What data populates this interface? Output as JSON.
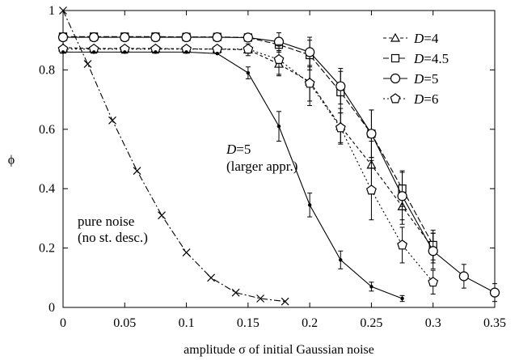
{
  "chart_data": {
    "type": "scatter",
    "xlabel": "amplitude σ of initial Gaussian noise",
    "ylabel": "ϕ",
    "xlim": [
      0,
      0.35
    ],
    "ylim": [
      0,
      1
    ],
    "xticks": [
      0,
      0.05,
      0.1,
      0.15,
      0.2,
      0.25,
      0.3,
      0.35
    ],
    "yticks": [
      0,
      0.2,
      0.4,
      0.6,
      0.8,
      1
    ],
    "xtick_labels": [
      "0",
      "0.05",
      "0.1",
      "0.15",
      "0.2",
      "0.25",
      "0.3",
      "0.35"
    ],
    "ytick_labels": [
      "0",
      "0.2",
      "0.4",
      "0.6",
      "0.8",
      "1"
    ],
    "legend_position": "top-right",
    "series": [
      {
        "name": "D=4",
        "legend_prefix": "D",
        "legend_suffix": "=4",
        "marker": "triangle",
        "dash": "4,3",
        "in_legend": true,
        "x": [
          0,
          0.025,
          0.05,
          0.075,
          0.1,
          0.125,
          0.15,
          0.175,
          0.2,
          0.225,
          0.25,
          0.275,
          0.3
        ],
        "y": [
          0.875,
          0.872,
          0.872,
          0.872,
          0.871,
          0.87,
          0.868,
          0.82,
          0.76,
          0.61,
          0.48,
          0.34,
          0.2
        ],
        "err": [
          0,
          0,
          0,
          0,
          0,
          0,
          0.02,
          0.04,
          0.08,
          0.06,
          0.08,
          0.06,
          0.05
        ]
      },
      {
        "name": "D=4.5",
        "legend_prefix": "D",
        "legend_suffix": "=4.5",
        "marker": "square",
        "dash": "7,3",
        "in_legend": true,
        "x": [
          0,
          0.025,
          0.05,
          0.075,
          0.1,
          0.125,
          0.15,
          0.175,
          0.2,
          0.225,
          0.25,
          0.275,
          0.3
        ],
        "y": [
          0.912,
          0.912,
          0.912,
          0.912,
          0.911,
          0.911,
          0.909,
          0.885,
          0.85,
          0.725,
          0.585,
          0.4,
          0.21
        ],
        "err": [
          0,
          0,
          0,
          0,
          0,
          0,
          0,
          0.02,
          0.05,
          0.07,
          0.08,
          0.06,
          0.05
        ]
      },
      {
        "name": "D=5",
        "legend_prefix": "D",
        "legend_suffix": "=5",
        "marker": "circle",
        "dash": "",
        "in_legend": true,
        "x": [
          0,
          0.025,
          0.05,
          0.075,
          0.1,
          0.125,
          0.15,
          0.175,
          0.2,
          0.225,
          0.25,
          0.275,
          0.3,
          0.325,
          0.35
        ],
        "y": [
          0.91,
          0.91,
          0.91,
          0.91,
          0.91,
          0.91,
          0.909,
          0.895,
          0.86,
          0.745,
          0.585,
          0.375,
          0.19,
          0.105,
          0.05
        ],
        "err": [
          0,
          0,
          0,
          0,
          0,
          0,
          0.01,
          0.03,
          0.05,
          0.06,
          0.08,
          0.08,
          0.06,
          0.04,
          0.03
        ]
      },
      {
        "name": "D=6",
        "legend_prefix": "D",
        "legend_suffix": "=6",
        "marker": "pentagon",
        "dash": "2,3",
        "in_legend": true,
        "x": [
          0,
          0.025,
          0.05,
          0.075,
          0.1,
          0.125,
          0.15,
          0.175,
          0.2,
          0.225,
          0.25,
          0.275,
          0.3
        ],
        "y": [
          0.87,
          0.87,
          0.87,
          0.87,
          0.87,
          0.87,
          0.87,
          0.835,
          0.755,
          0.605,
          0.395,
          0.21,
          0.085
        ],
        "err": [
          0,
          0,
          0,
          0,
          0,
          0,
          0,
          0.05,
          0.06,
          0.05,
          0.1,
          0.06,
          0.04
        ]
      },
      {
        "name": "D=5 (larger appr.)",
        "marker": "dot",
        "dash": "",
        "in_legend": false,
        "x": [
          0,
          0.025,
          0.05,
          0.075,
          0.1,
          0.125,
          0.15,
          0.175,
          0.2,
          0.225,
          0.25,
          0.275
        ],
        "y": [
          0.86,
          0.86,
          0.86,
          0.86,
          0.86,
          0.855,
          0.79,
          0.61,
          0.345,
          0.16,
          0.07,
          0.03
        ],
        "err": [
          0,
          0,
          0,
          0,
          0,
          0,
          0.02,
          0.05,
          0.04,
          0.03,
          0.015,
          0.01
        ]
      },
      {
        "name": "pure noise (no st. desc.)",
        "marker": "cross",
        "dash": "8,3,2,3",
        "in_legend": false,
        "x": [
          0,
          0.02,
          0.04,
          0.06,
          0.08,
          0.1,
          0.12,
          0.14,
          0.16,
          0.18
        ],
        "y": [
          1,
          0.82,
          0.63,
          0.46,
          0.31,
          0.185,
          0.1,
          0.05,
          0.03,
          0.02
        ],
        "err": [
          0,
          0,
          0,
          0,
          0,
          0,
          0,
          0,
          0,
          0
        ]
      }
    ],
    "annotations": [
      {
        "id": "d5-larger",
        "prefix": "D",
        "lines": [
          "=5",
          "(larger appr.)"
        ]
      },
      {
        "id": "pure-noise",
        "lines": [
          "pure noise",
          "(no st. desc.)"
        ]
      }
    ]
  }
}
